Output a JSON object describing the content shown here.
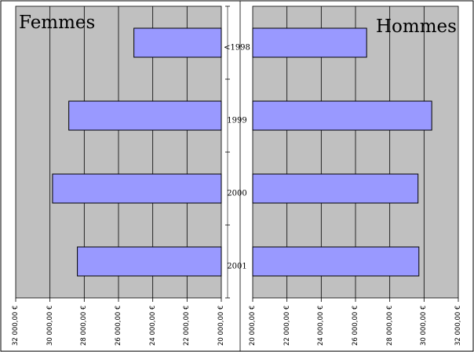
{
  "chart_data": [
    {
      "type": "bar",
      "orientation": "horizontal",
      "title": "Femmes",
      "categories": [
        "<1998",
        "1999",
        "2000",
        "2001"
      ],
      "values": [
        25100,
        28900,
        29850,
        28400
      ],
      "xlim": [
        20000,
        32000
      ],
      "x_reversed": true,
      "ticks": [
        "20 000,00 €",
        "22 000,00 €",
        "24 000,00 €",
        "26 000,00 €",
        "28 000,00 €",
        "30 000,00 €",
        "32 000,00 €"
      ],
      "bar_color": "#9999ff",
      "plot_background": "#c0c0c0",
      "grid": true
    },
    {
      "type": "bar",
      "orientation": "horizontal",
      "title": "Hommes",
      "categories": [
        "<1998",
        "1999",
        "2000",
        "2001"
      ],
      "values": [
        26650,
        30450,
        29650,
        29700
      ],
      "xlim": [
        20000,
        32000
      ],
      "x_reversed": false,
      "ticks": [
        "20 000,00 €",
        "22 000,00 €",
        "24 000,00 €",
        "26 000,00 €",
        "28 000,00 €",
        "30 000,00 €",
        "32 000,00 €"
      ],
      "bar_color": "#9999ff",
      "plot_background": "#c0c0c0",
      "grid": true
    }
  ]
}
